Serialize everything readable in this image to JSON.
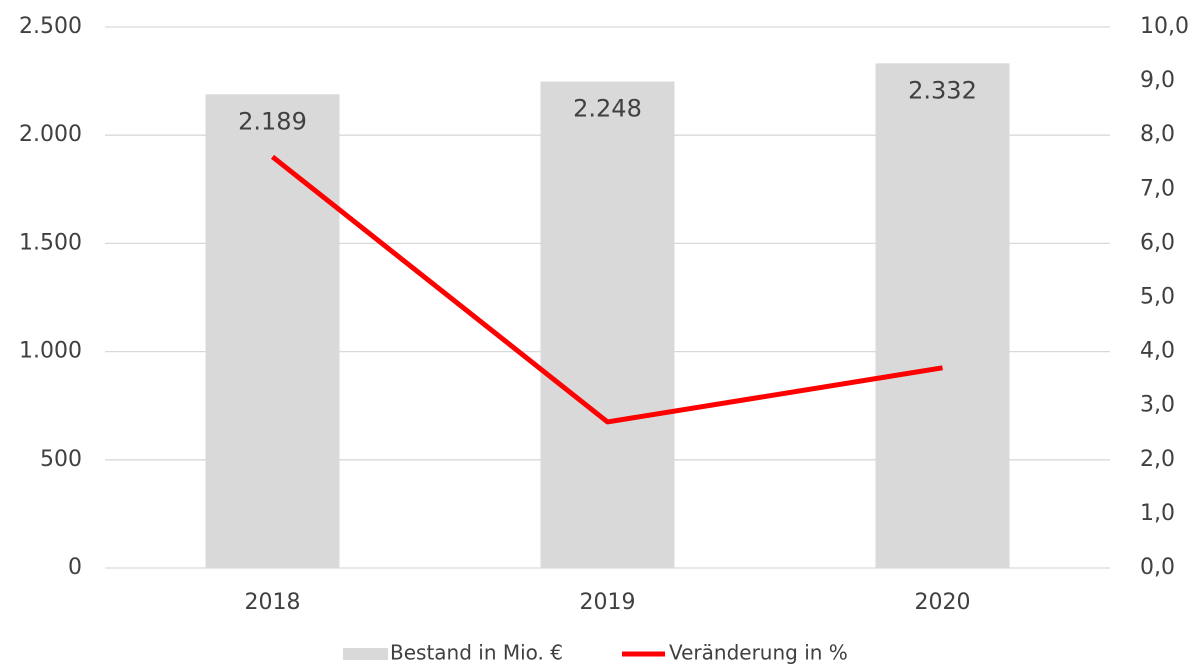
{
  "chart_data": {
    "type": "combo",
    "categories": [
      "2018",
      "2019",
      "2020"
    ],
    "series": [
      {
        "name": "Bestand in Mio. €",
        "type": "bar",
        "color": "#d9d9d9",
        "values": [
          2189,
          2248,
          2332
        ],
        "value_labels": [
          "2.189",
          "2.248",
          "2.332"
        ]
      },
      {
        "name": "Veränderung in %",
        "type": "line",
        "axis": "y2",
        "color": "#ff0000",
        "values": [
          7.6,
          2.7,
          3.7
        ]
      }
    ],
    "ylim": [
      0,
      2500
    ],
    "yticks": [
      0,
      500,
      {
        "value": 1000,
        "label": "1.000"
      },
      {
        "value": 1500,
        "label": "1.500"
      },
      {
        "value": 2000,
        "label": "2.000"
      },
      {
        "value": 2500,
        "label": "2.500"
      }
    ],
    "y2lim": [
      0,
      10
    ],
    "y2ticks": [
      {
        "value": 0,
        "label": "0,0"
      },
      {
        "value": 1,
        "label": "1,0"
      },
      {
        "value": 2,
        "label": "2,0"
      },
      {
        "value": 3,
        "label": "3,0"
      },
      {
        "value": 4,
        "label": "4,0"
      },
      {
        "value": 5,
        "label": "5,0"
      },
      {
        "value": 6,
        "label": "6,0"
      },
      {
        "value": 7,
        "label": "7,0"
      },
      {
        "value": 8,
        "label": "8,0"
      },
      {
        "value": 9,
        "label": "9,0"
      },
      {
        "value": 10,
        "label": "10,0"
      }
    ],
    "grid": true,
    "legend": "bottom"
  }
}
